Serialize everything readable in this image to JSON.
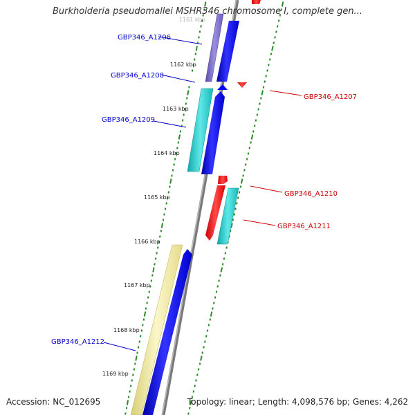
{
  "title": "Burkholderia pseudomallei MSHR346 chromosome I, complete gen...",
  "footer": {
    "accession": "Accession: NC_012695",
    "topology": "Topology: linear; Length: 4,098,576 bp; Genes: 4,262"
  },
  "scale_labels": [
    "1161 kbp",
    "1162 kbp",
    "1163 kbp",
    "1164 kbp",
    "1165 kbp",
    "1166 kbp",
    "1167 kbp",
    "1168 kbp",
    "1169 kbp"
  ],
  "genes": [
    {
      "label": "GBP346_A1206",
      "strand": "forward",
      "color": "#7b6cc4"
    },
    {
      "label": "GBP346_A1207",
      "strand": "reverse",
      "color": "#ff0000"
    },
    {
      "label": "GBP346_A1208",
      "strand": "forward",
      "color": "#0000ff"
    },
    {
      "label": "GBP346_A1209",
      "strand": "forward",
      "color": "#20c8c8"
    },
    {
      "label": "GBP346_A1210",
      "strand": "reverse",
      "color": "#ff0000"
    },
    {
      "label": "GBP346_A1211",
      "strand": "reverse",
      "color": "#20c8c8"
    },
    {
      "label": "GBP346_A1212",
      "strand": "forward",
      "color": "#f0e89a"
    }
  ],
  "colors": {
    "forward_label": "#0000cc",
    "reverse_label": "#cc0000",
    "cds": "#0000ff",
    "ticks": "#2a8a2a",
    "backbone": "#808080"
  }
}
